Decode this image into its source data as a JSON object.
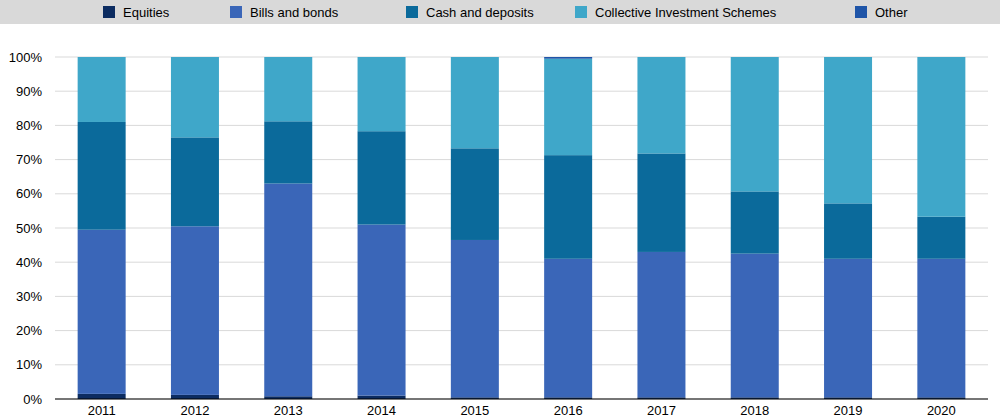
{
  "chart_data": {
    "type": "bar",
    "stacked": true,
    "grid": true,
    "legend": "top",
    "categories": [
      "2011",
      "2012",
      "2013",
      "2014",
      "2015",
      "2016",
      "2017",
      "2018",
      "2019",
      "2020"
    ],
    "series": [
      {
        "name": "Equities",
        "color": "#0c2c61",
        "values": [
          1.5,
          1.2,
          0.8,
          1.0,
          0.5,
          0.5,
          0.5,
          0.5,
          0.5,
          0.5
        ]
      },
      {
        "name": "Bills and bonds",
        "color": "#3a66b8",
        "values": [
          48.0,
          49.3,
          62.2,
          50.0,
          46.0,
          40.5,
          42.5,
          42.0,
          40.5,
          40.5
        ]
      },
      {
        "name": "Cash and deposits",
        "color": "#0b6a9b",
        "values": [
          31.5,
          26.0,
          18.2,
          27.3,
          26.8,
          30.3,
          28.8,
          18.2,
          16.2,
          12.3
        ]
      },
      {
        "name": "Collective Investment Schemes",
        "color": "#3fa7c9",
        "values": [
          19.0,
          23.5,
          18.8,
          21.7,
          26.7,
          28.2,
          28.2,
          39.3,
          42.8,
          46.7
        ]
      },
      {
        "name": "Other",
        "color": "#1f55a8",
        "values": [
          0,
          0,
          0,
          0,
          0,
          0.5,
          0,
          0,
          0,
          0
        ]
      }
    ],
    "ylim": [
      0,
      100
    ],
    "yticks": [
      {
        "value": 0,
        "label": "0%"
      },
      {
        "value": 10,
        "label": "10%"
      },
      {
        "value": 20,
        "label": "20%"
      },
      {
        "value": 30,
        "label": "30%"
      },
      {
        "value": 40,
        "label": "40%"
      },
      {
        "value": 50,
        "label": "50%"
      },
      {
        "value": 60,
        "label": "60%"
      },
      {
        "value": 70,
        "label": "70%"
      },
      {
        "value": 80,
        "label": "80%"
      },
      {
        "value": 90,
        "label": "90%"
      },
      {
        "value": 100,
        "label": "100%"
      }
    ]
  }
}
